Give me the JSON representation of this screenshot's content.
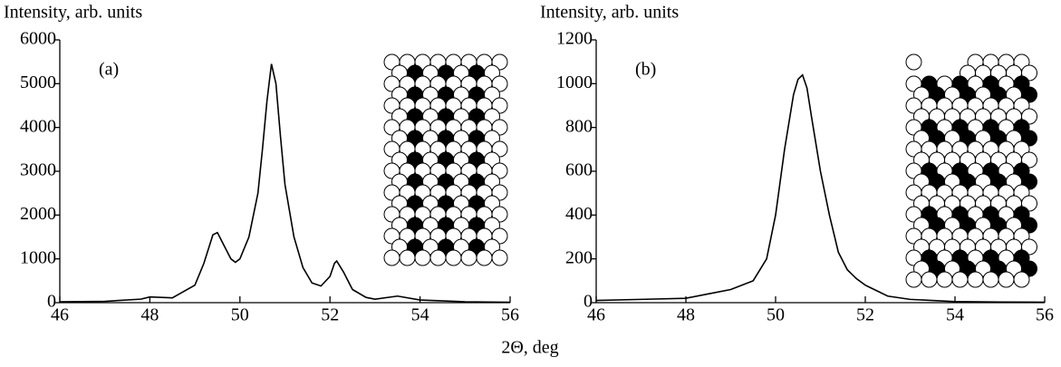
{
  "chart_data": [
    {
      "type": "line",
      "ylabel": "Intensity, arb. units",
      "xlabel": "2Θ, deg",
      "annotation": "(a)",
      "xlim": [
        46,
        56
      ],
      "xticks": [
        46,
        48,
        50,
        52,
        54,
        56
      ],
      "ylim": [
        0,
        6000
      ],
      "yticks": [
        0,
        1000,
        2000,
        3000,
        4000,
        5000,
        6000
      ],
      "series": [
        {
          "color": "#000000",
          "x": [
            46,
            47,
            47.8,
            48,
            48.5,
            49,
            49.2,
            49.4,
            49.5,
            49.6,
            49.8,
            49.9,
            50,
            50.2,
            50.4,
            50.5,
            50.6,
            50.7,
            50.8,
            50.9,
            51,
            51.2,
            51.4,
            51.6,
            51.8,
            52,
            52.1,
            52.15,
            52.3,
            52.5,
            52.8,
            53,
            53.5,
            54,
            55,
            56
          ],
          "values": [
            20,
            30,
            80,
            130,
            110,
            400,
            900,
            1550,
            1600,
            1400,
            1000,
            920,
            1000,
            1500,
            2500,
            3500,
            4600,
            5450,
            5000,
            3800,
            2700,
            1500,
            800,
            450,
            380,
            600,
            900,
            950,
            700,
            300,
            120,
            80,
            150,
            60,
            20,
            10
          ]
        }
      ]
    },
    {
      "type": "line",
      "ylabel": "Intensity, arb. units",
      "annotation": "(b)",
      "xlim": [
        46,
        56
      ],
      "xticks": [
        46,
        48,
        50,
        52,
        54,
        56
      ],
      "ylim": [
        0,
        1200
      ],
      "yticks": [
        0,
        200,
        400,
        600,
        800,
        1000,
        1200
      ],
      "series": [
        {
          "color": "#000000",
          "x": [
            46,
            47,
            48,
            48.5,
            49,
            49.5,
            49.8,
            50,
            50.2,
            50.4,
            50.5,
            50.6,
            50.7,
            50.8,
            51,
            51.2,
            51.4,
            51.6,
            51.8,
            52,
            52.2,
            52.5,
            53,
            54,
            55,
            56
          ],
          "values": [
            10,
            15,
            20,
            40,
            60,
            100,
            200,
            400,
            700,
            950,
            1020,
            1040,
            980,
            850,
            600,
            400,
            230,
            150,
            110,
            80,
            60,
            30,
            15,
            5,
            3,
            2
          ]
        }
      ]
    }
  ]
}
